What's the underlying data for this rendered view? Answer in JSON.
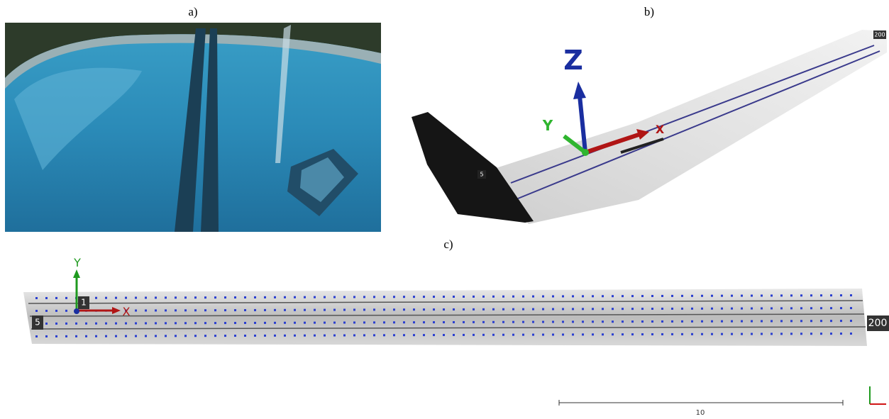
{
  "panels": [
    {
      "label": "a)"
    },
    {
      "label": "b)",
      "axes": {
        "z": "Z",
        "y": "Y",
        "x": "X"
      },
      "markers": [
        "5",
        "200"
      ]
    },
    {
      "label": "c)",
      "axes": {
        "y": "Y",
        "x": "X"
      },
      "markers": [
        "1",
        "5",
        "200"
      ],
      "scale_bar": "10"
    }
  ]
}
